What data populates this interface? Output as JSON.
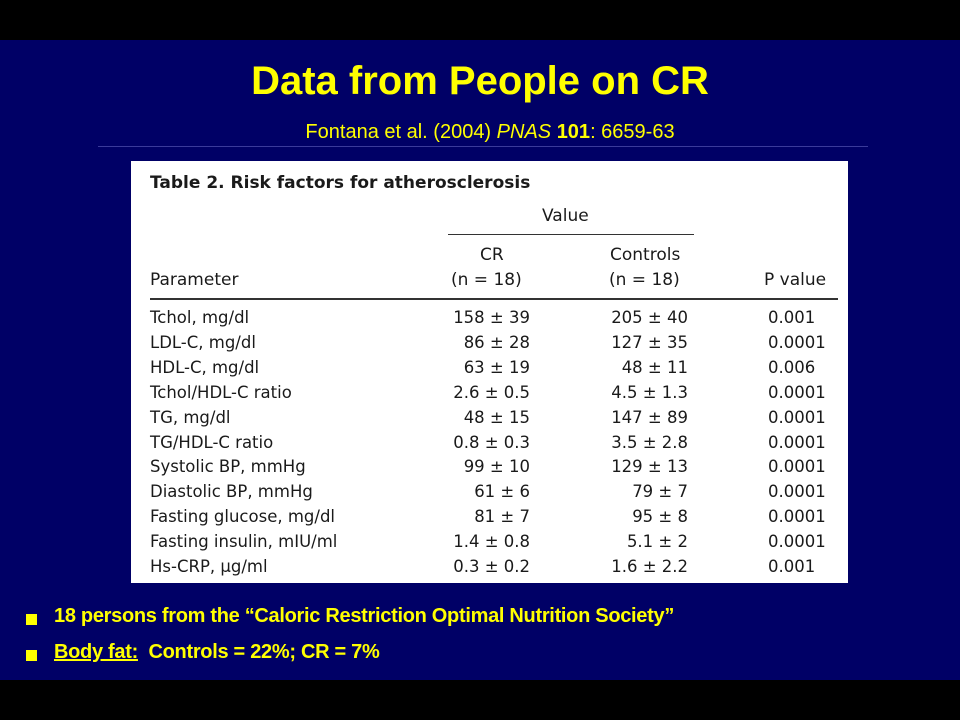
{
  "slide": {
    "title": "Data from People on CR",
    "citation": {
      "authors": "Fontana et al. (2004) ",
      "journal": "PNAS",
      "volume": "101",
      "pages": ": 6659-63"
    },
    "colors": {
      "background": "#000066",
      "text": "#ffff00",
      "letterbox": "#000000"
    }
  },
  "table": {
    "caption": "Table 2. Risk factors for atherosclerosis",
    "value_header": "Value",
    "headers": {
      "parameter": "Parameter",
      "cr": "CR",
      "cr_n": "(n = 18)",
      "controls": "Controls",
      "controls_n": "(n = 18)",
      "p_value": "P value"
    },
    "rows": [
      {
        "param": "Tchol, mg/dl",
        "cr": "158 ± 39",
        "controls": "205 ± 40",
        "p": "0.001"
      },
      {
        "param": "LDL-C, mg/dl",
        "cr": "86 ± 28",
        "controls": "127 ± 35",
        "p": "0.0001"
      },
      {
        "param": "HDL-C, mg/dl",
        "cr": "63 ± 19",
        "controls": "48 ± 11",
        "p": "0.006"
      },
      {
        "param": "Tchol/HDL-C ratio",
        "cr": "2.6 ± 0.5",
        "controls": "4.5 ± 1.3",
        "p": "0.0001"
      },
      {
        "param": "TG, mg/dl",
        "cr": "48 ± 15",
        "controls": "147 ± 89",
        "p": "0.0001"
      },
      {
        "param": "TG/HDL-C ratio",
        "cr": "0.8 ± 0.3",
        "controls": "3.5 ± 2.8",
        "p": "0.0001"
      },
      {
        "param": "Systolic BP, mmHg",
        "cr": "99 ± 10",
        "controls": "129 ± 13",
        "p": "0.0001"
      },
      {
        "param": "Diastolic BP, mmHg",
        "cr": "61 ± 6",
        "controls": "79 ± 7",
        "p": "0.0001"
      },
      {
        "param": "Fasting glucose, mg/dl",
        "cr": "81 ± 7",
        "controls": "95 ± 8",
        "p": "0.0001"
      },
      {
        "param": "Fasting insulin, mIU/ml",
        "cr": "1.4 ± 0.8",
        "controls": "5.1 ± 2",
        "p": "0.0001"
      },
      {
        "param": "Hs-CRP, μg/ml",
        "cr": "0.3 ± 0.2",
        "controls": "1.6 ± 2.2",
        "p": "0.001"
      }
    ]
  },
  "bullets": [
    {
      "text": "18 persons from the “Caloric Restriction Optimal Nutrition Society”"
    },
    {
      "label": "Body fat:",
      "text": "  Controls = 22%; CR = 7%"
    }
  ]
}
